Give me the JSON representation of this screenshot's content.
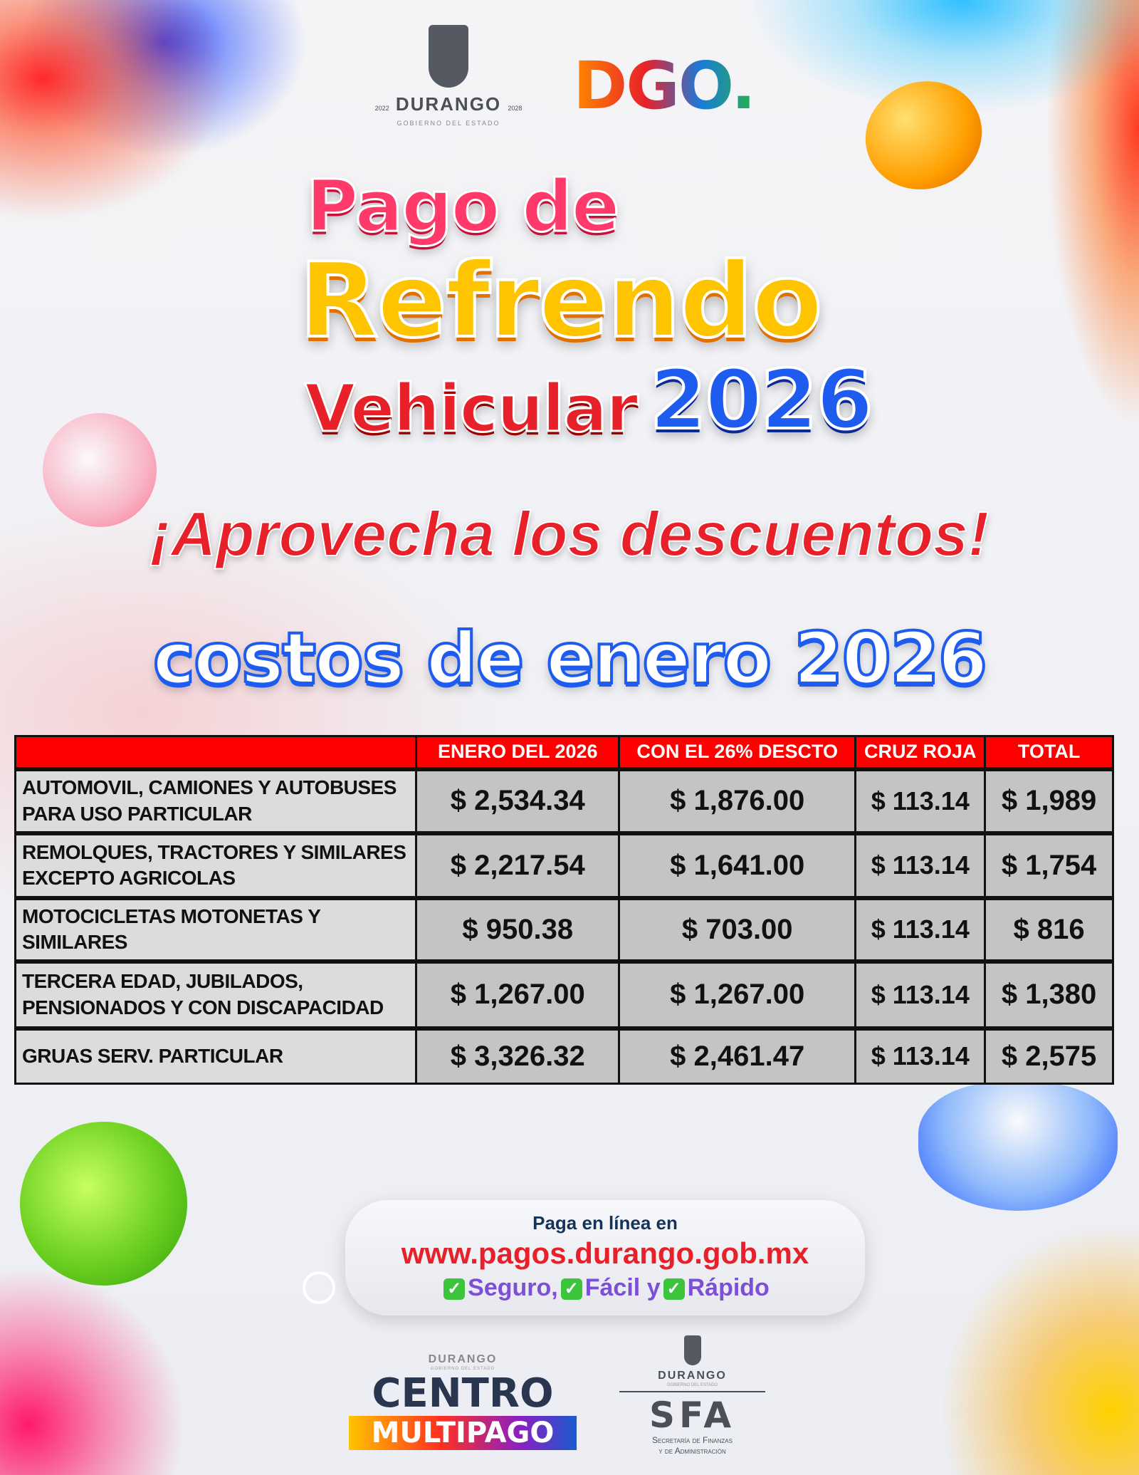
{
  "header": {
    "logo_durango": {
      "name": "DURANGO",
      "subtitle": "GOBIERNO DEL ESTADO",
      "year_left": "2022",
      "year_right": "2028"
    },
    "logo_dgo": "DGO."
  },
  "headline": {
    "line1": "Pago de",
    "line2": "Refrendo",
    "line3": "Vehicular",
    "year": "2026"
  },
  "tagline": "¡Aprovecha los descuentos!",
  "subtitle": "costos de enero 2026",
  "table": {
    "columns": [
      "",
      "ENERO DEL 2026",
      "CON EL 26% DESCTO",
      "CRUZ ROJA",
      "TOTAL"
    ],
    "rows": [
      {
        "label": "AUTOMOVIL, CAMIONES Y AUTOBUSES PARA USO PARTICULAR",
        "enero": "$ 2,534.34",
        "descuento": "$ 1,876.00",
        "cruz_roja": "$ 113.14",
        "total": "$ 1,989"
      },
      {
        "label": "REMOLQUES, TRACTORES Y SIMILARES EXCEPTO AGRICOLAS",
        "enero": "$ 2,217.54",
        "descuento": "$ 1,641.00",
        "cruz_roja": "$ 113.14",
        "total": "$ 1,754"
      },
      {
        "label": "MOTOCICLETAS MOTONETAS Y SIMILARES",
        "enero": "$ 950.38",
        "descuento": "$ 703.00",
        "cruz_roja": "$ 113.14",
        "total": "$ 816"
      },
      {
        "label": "TERCERA EDAD, JUBILADOS, PENSIONADOS Y CON DISCAPACIDAD",
        "enero": "$ 1,267.00",
        "descuento": "$ 1,267.00",
        "cruz_roja": "$ 113.14",
        "total": "$ 1,380"
      },
      {
        "label": "GRUAS SERV. PARTICULAR",
        "enero": "$ 3,326.32",
        "descuento": "$ 2,461.47",
        "cruz_roja": "$ 113.14",
        "total": "$ 2,575"
      }
    ]
  },
  "online": {
    "intro": "Paga en línea en",
    "url": "www.pagos.durango.gob.mx",
    "features": [
      "Seguro,",
      "Fácil",
      "Rápido"
    ],
    "joiner": "y",
    "check_icon": "check-box-icon"
  },
  "footer": {
    "centro": {
      "top": "DURANGO",
      "sub": "GOBIERNO DEL ESTADO",
      "line1": "CENTRO",
      "line2": "MULTIPAGO"
    },
    "sfa": {
      "top": "DURANGO",
      "sub": "GOBIERNO DEL ESTADO",
      "acronym": "SFA",
      "line1": "Secretaría de Finanzas",
      "line2": "y de Administración"
    }
  },
  "colors": {
    "red": "#e8202a",
    "yellow": "#ffc400",
    "blue": "#1e5cf0",
    "header_red": "#ff0000",
    "purple": "#7b4fd6",
    "navy": "#16335a"
  }
}
